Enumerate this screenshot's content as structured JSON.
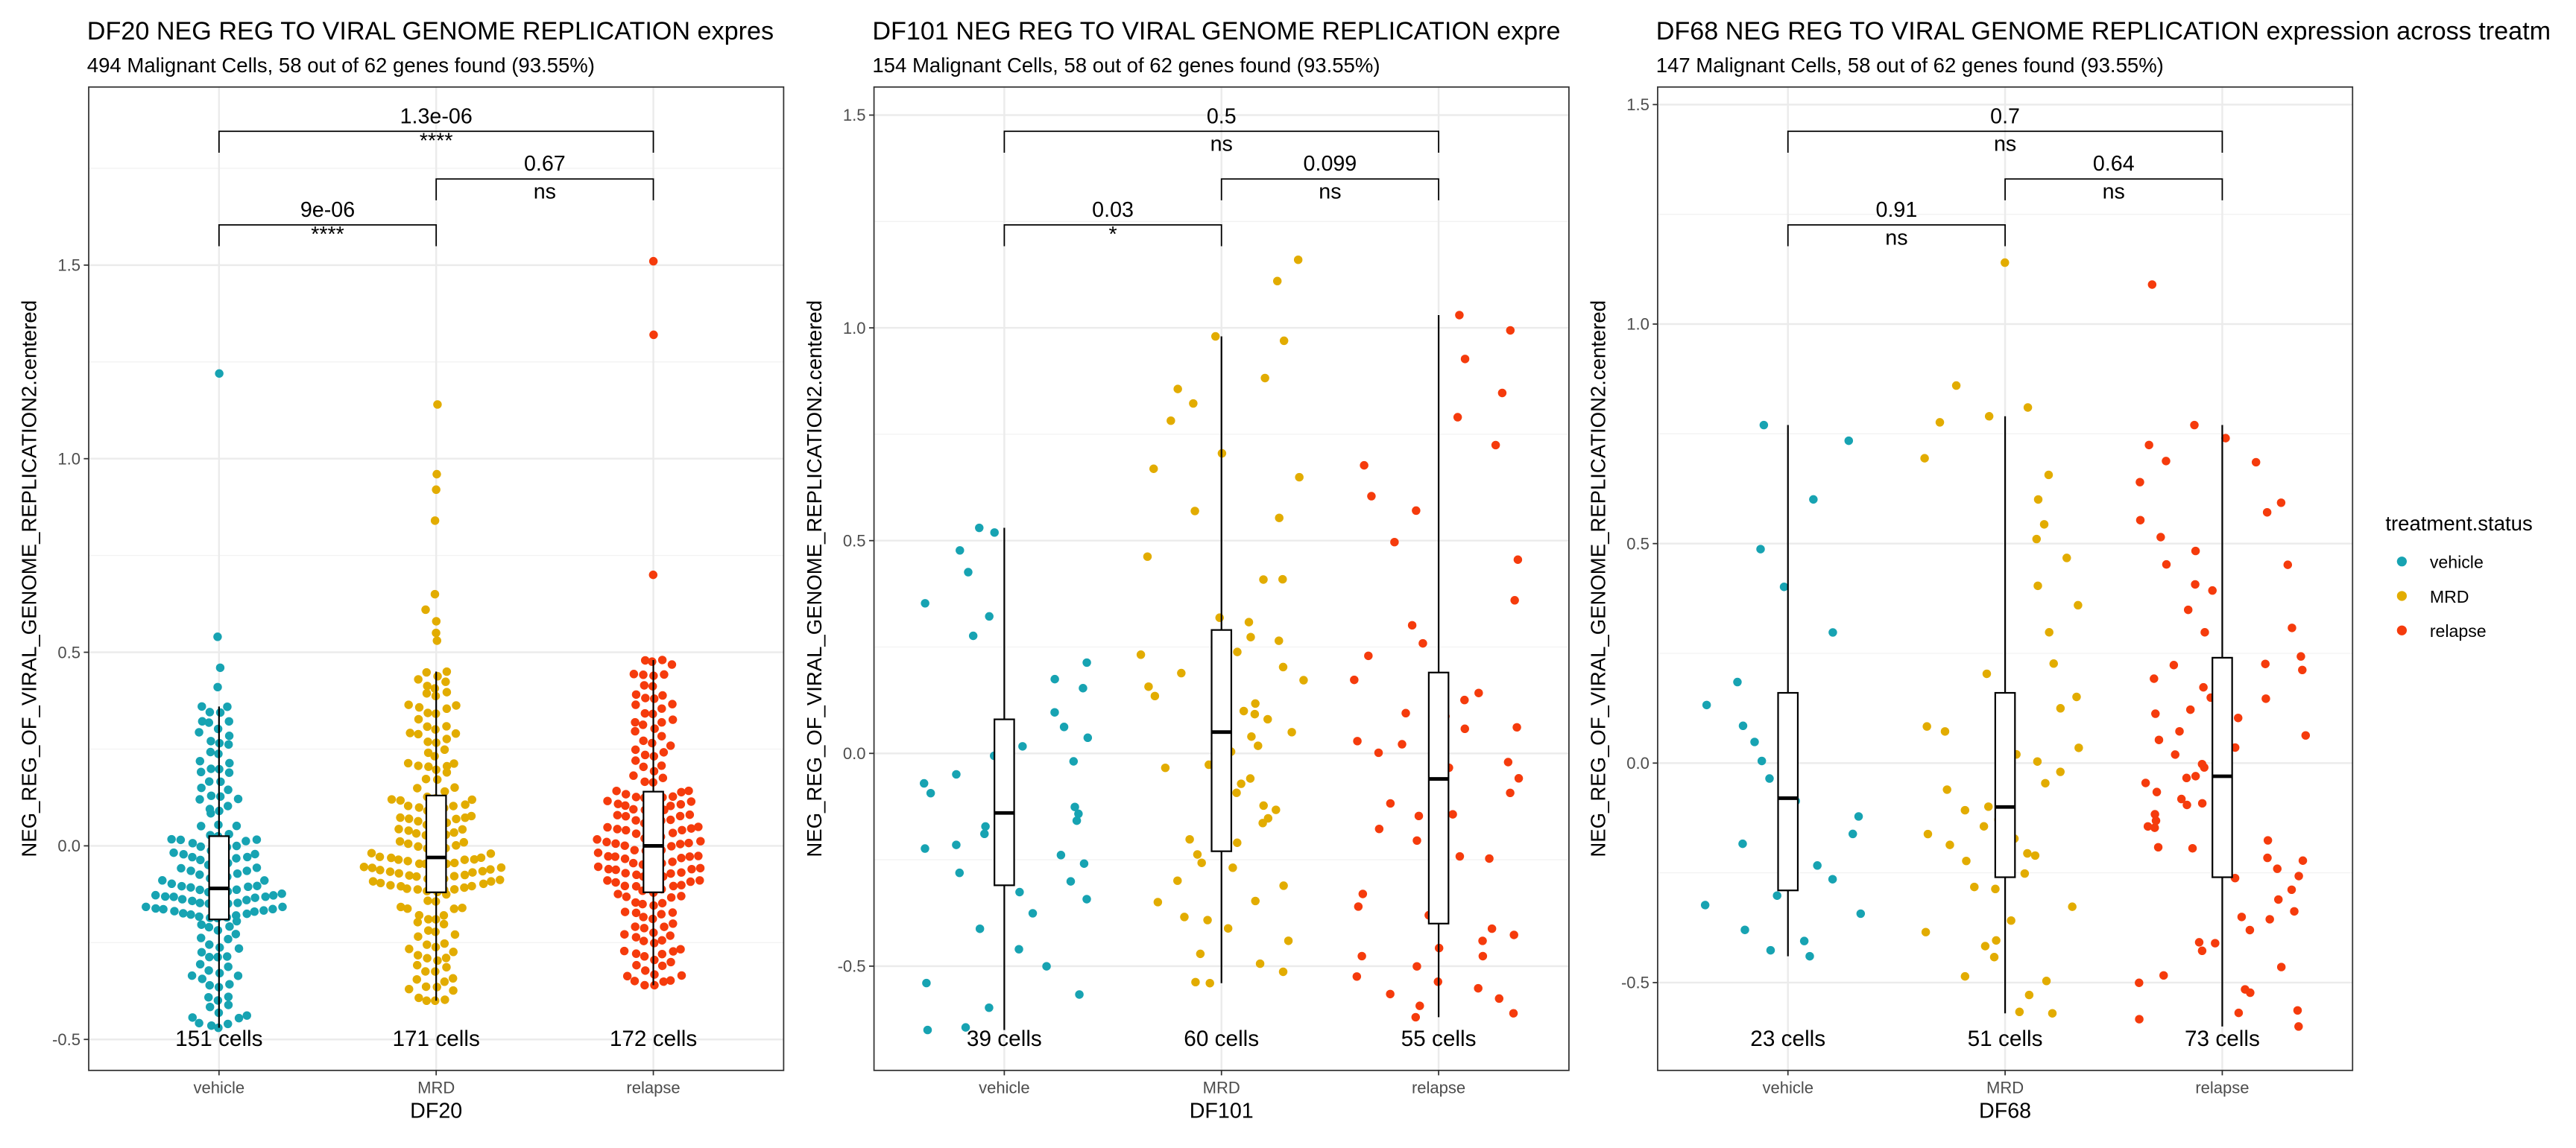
{
  "chart_data": [
    {
      "type": "box+jitter",
      "title": "DF20 NEG REG TO VIRAL GENOME REPLICATION expres",
      "subtitle": "494 Malignant Cells, 58 out of 62 genes found (93.55%)",
      "xlabel": "DF20",
      "ylabel": "NEG_REG_OF_VIRAL_GENOME_REPLICATION2.centered",
      "ylim": [
        -0.58,
        1.96
      ],
      "yticks": [
        -0.5,
        0.0,
        0.5,
        1.0,
        1.5
      ],
      "ytick_labels": [
        "-0.5",
        "0.0",
        "0.5",
        "1.0",
        "1.5"
      ],
      "categories": [
        "vehicle",
        "MRD",
        "relapse"
      ],
      "groups": [
        {
          "name": "vehicle",
          "n": 151,
          "count_label": "151 cells",
          "q1": -0.19,
          "median": -0.11,
          "q3": 0.025,
          "whisker_low": -0.47,
          "whisker_high": 0.36,
          "outliers": [
            0.41,
            0.46,
            0.54,
            1.22
          ],
          "spread": "beeswarm"
        },
        {
          "name": "MRD",
          "n": 171,
          "count_label": "171 cells",
          "q1": -0.12,
          "median": -0.03,
          "q3": 0.13,
          "whisker_low": -0.4,
          "whisker_high": 0.45,
          "outliers": [
            0.53,
            0.55,
            0.58,
            0.61,
            0.65,
            0.84,
            0.92,
            0.96,
            1.14
          ],
          "spread": "beeswarm"
        },
        {
          "name": "relapse",
          "n": 172,
          "count_label": "172 cells",
          "q1": -0.12,
          "median": 0.0,
          "q3": 0.14,
          "whisker_low": -0.36,
          "whisker_high": 0.48,
          "outliers": [
            0.7,
            1.32,
            1.51
          ],
          "spread": "beeswarm"
        }
      ],
      "comparisons": [
        {
          "from": "vehicle",
          "to": "relapse",
          "p": "1.3e-06",
          "signif": "****",
          "level": 3
        },
        {
          "from": "MRD",
          "to": "relapse",
          "p": "0.67",
          "signif": "ns",
          "level": 2
        },
        {
          "from": "vehicle",
          "to": "MRD",
          "p": "9e-06",
          "signif": "****",
          "level": 1
        }
      ],
      "grid": true
    },
    {
      "type": "box+jitter",
      "title": "DF101 NEG REG TO VIRAL GENOME REPLICATION expre",
      "subtitle": "154 Malignant Cells, 58 out of 62 genes found (93.55%)",
      "xlabel": "DF101",
      "ylabel": "NEG_REG_OF_VIRAL_GENOME_REPLICATION2.centered",
      "ylim": [
        -0.745,
        1.566
      ],
      "yticks": [
        -0.5,
        0.0,
        0.5,
        1.0,
        1.5
      ],
      "ytick_labels": [
        "-0.5",
        "0.0",
        "0.5",
        "1.0",
        "1.5"
      ],
      "categories": [
        "vehicle",
        "MRD",
        "relapse"
      ],
      "groups": [
        {
          "name": "vehicle",
          "n": 39,
          "count_label": "39 cells",
          "q1": -0.31,
          "median": -0.14,
          "q3": 0.08,
          "whisker_low": -0.65,
          "whisker_high": 0.53,
          "outliers": [],
          "spread": "jitter"
        },
        {
          "name": "MRD",
          "n": 60,
          "count_label": "60 cells",
          "q1": -0.23,
          "median": 0.05,
          "q3": 0.29,
          "whisker_low": -0.54,
          "whisker_high": 0.98,
          "outliers": [
            1.11,
            1.16
          ],
          "spread": "jitter"
        },
        {
          "name": "relapse",
          "n": 55,
          "count_label": "55 cells",
          "q1": -0.4,
          "median": -0.06,
          "q3": 0.19,
          "whisker_low": -0.62,
          "whisker_high": 1.03,
          "outliers": [],
          "spread": "jitter"
        }
      ],
      "comparisons": [
        {
          "from": "vehicle",
          "to": "relapse",
          "p": "0.5",
          "signif": "ns",
          "level": 3
        },
        {
          "from": "MRD",
          "to": "relapse",
          "p": "0.099",
          "signif": "ns",
          "level": 2
        },
        {
          "from": "vehicle",
          "to": "MRD",
          "p": "0.03",
          "signif": "*",
          "level": 1
        }
      ],
      "grid": true
    },
    {
      "type": "box+jitter",
      "title": "DF68 NEG REG TO VIRAL GENOME REPLICATION expression across treatm",
      "subtitle": "147 Malignant Cells, 58 out of 62 genes found (93.55%)",
      "xlabel": "DF68",
      "ylabel": "NEG_REG_OF_VIRAL_GENOME_REPLICATION2.centered",
      "ylim": [
        -0.7,
        1.54
      ],
      "yticks": [
        -0.5,
        0.0,
        0.5,
        1.0,
        1.5
      ],
      "ytick_labels": [
        "-0.5",
        "0.0",
        "0.5",
        "1.0",
        "1.5"
      ],
      "categories": [
        "vehicle",
        "MRD",
        "relapse"
      ],
      "groups": [
        {
          "name": "vehicle",
          "n": 23,
          "count_label": "23 cells",
          "q1": -0.29,
          "median": -0.08,
          "q3": 0.16,
          "whisker_low": -0.44,
          "whisker_high": 0.77,
          "outliers": [],
          "spread": "jitter"
        },
        {
          "name": "MRD",
          "n": 51,
          "count_label": "51 cells",
          "q1": -0.26,
          "median": -0.1,
          "q3": 0.16,
          "whisker_low": -0.57,
          "whisker_high": 0.79,
          "outliers": [
            0.81,
            0.86,
            1.14
          ],
          "spread": "jitter"
        },
        {
          "name": "relapse",
          "n": 73,
          "count_label": "73 cells",
          "q1": -0.26,
          "median": -0.03,
          "q3": 0.24,
          "whisker_low": -0.6,
          "whisker_high": 0.77,
          "outliers": [
            1.09
          ],
          "spread": "jitter"
        }
      ],
      "comparisons": [
        {
          "from": "vehicle",
          "to": "relapse",
          "p": "0.7",
          "signif": "ns",
          "level": 3
        },
        {
          "from": "MRD",
          "to": "relapse",
          "p": "0.64",
          "signif": "ns",
          "level": 2
        },
        {
          "from": "vehicle",
          "to": "MRD",
          "p": "0.91",
          "signif": "ns",
          "level": 1
        }
      ],
      "grid": true
    }
  ],
  "legend": {
    "title": "treatment.status",
    "placement": "right",
    "items": [
      {
        "label": "vehicle",
        "color": "#17A3B2"
      },
      {
        "label": "MRD",
        "color": "#E2AC00"
      },
      {
        "label": "relapse",
        "color": "#F53B0C"
      }
    ]
  }
}
